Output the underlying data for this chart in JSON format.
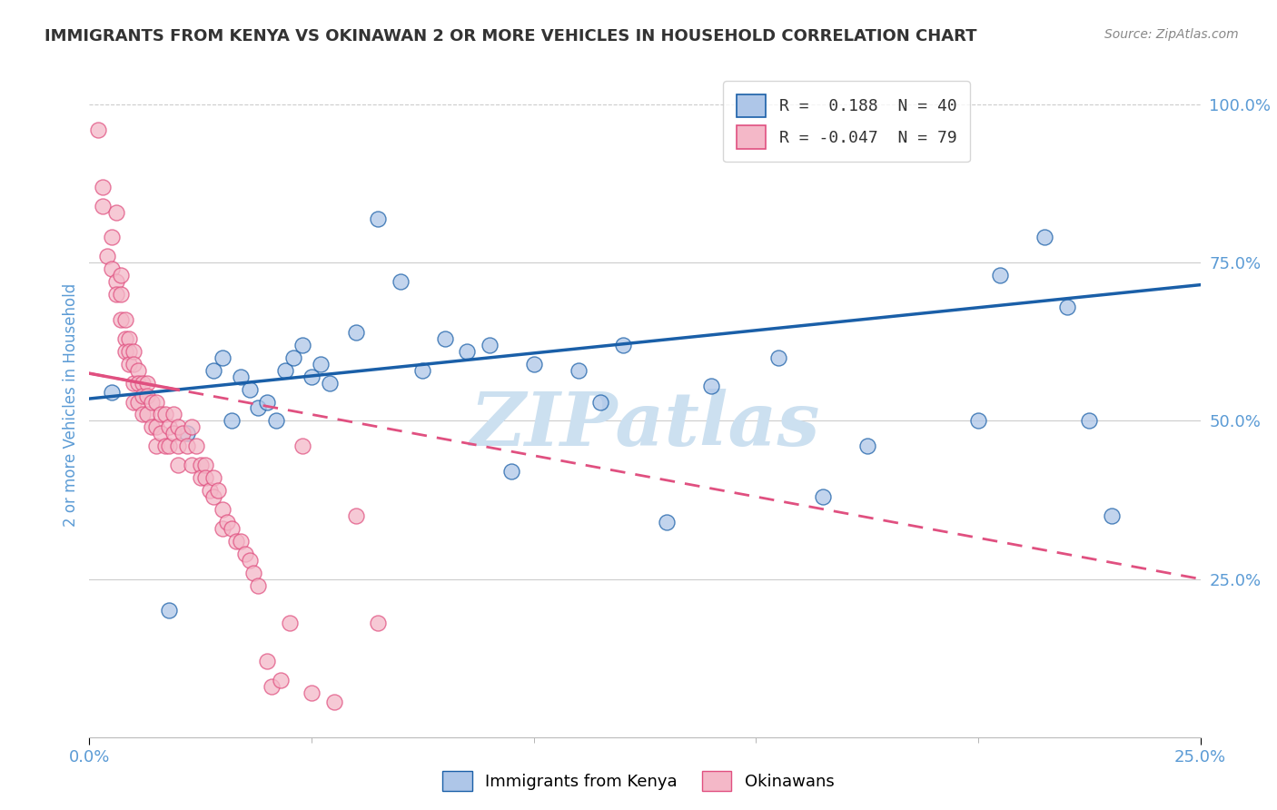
{
  "title": "IMMIGRANTS FROM KENYA VS OKINAWAN 2 OR MORE VEHICLES IN HOUSEHOLD CORRELATION CHART",
  "source": "Source: ZipAtlas.com",
  "ylabel": "2 or more Vehicles in Household",
  "xlim": [
    0.0,
    0.25
  ],
  "ylim": [
    0.0,
    1.05
  ],
  "xtick_vals": [
    0.0,
    0.25
  ],
  "xtick_labels": [
    "0.0%",
    "25.0%"
  ],
  "ytick_vals": [
    0.25,
    0.5,
    0.75,
    1.0
  ],
  "ytick_labels": [
    "25.0%",
    "50.0%",
    "75.0%",
    "100.0%"
  ],
  "legend1_label": "R =  0.188  N = 40",
  "legend2_label": "R = -0.047  N = 79",
  "legend1_facecolor": "#aec6e8",
  "legend2_facecolor": "#f4b8c8",
  "blue_line_color": "#1a5fa8",
  "pink_line_color": "#e05080",
  "axis_color": "#5b9bd5",
  "grid_color": "#cccccc",
  "watermark_color": "#cce0f0",
  "background_color": "#ffffff",
  "title_color": "#333333",
  "blue_R": 0.188,
  "pink_R": -0.047,
  "blue_intercept": 0.535,
  "blue_slope": 0.72,
  "pink_intercept": 0.575,
  "pink_slope": -1.3,
  "blue_scatter_x": [
    0.005,
    0.018,
    0.022,
    0.028,
    0.03,
    0.032,
    0.034,
    0.036,
    0.038,
    0.04,
    0.042,
    0.044,
    0.046,
    0.048,
    0.05,
    0.052,
    0.054,
    0.06,
    0.065,
    0.07,
    0.075,
    0.08,
    0.085,
    0.09,
    0.095,
    0.1,
    0.11,
    0.115,
    0.12,
    0.13,
    0.14,
    0.155,
    0.165,
    0.175,
    0.2,
    0.205,
    0.215,
    0.22,
    0.225,
    0.23
  ],
  "blue_scatter_y": [
    0.545,
    0.2,
    0.48,
    0.58,
    0.6,
    0.5,
    0.57,
    0.55,
    0.52,
    0.53,
    0.5,
    0.58,
    0.6,
    0.62,
    0.57,
    0.59,
    0.56,
    0.64,
    0.82,
    0.72,
    0.58,
    0.63,
    0.61,
    0.62,
    0.42,
    0.59,
    0.58,
    0.53,
    0.62,
    0.34,
    0.555,
    0.6,
    0.38,
    0.46,
    0.5,
    0.73,
    0.79,
    0.68,
    0.5,
    0.35
  ],
  "pink_scatter_x": [
    0.002,
    0.003,
    0.003,
    0.004,
    0.005,
    0.005,
    0.006,
    0.006,
    0.006,
    0.007,
    0.007,
    0.007,
    0.008,
    0.008,
    0.008,
    0.009,
    0.009,
    0.009,
    0.01,
    0.01,
    0.01,
    0.01,
    0.011,
    0.011,
    0.011,
    0.012,
    0.012,
    0.012,
    0.013,
    0.013,
    0.013,
    0.014,
    0.014,
    0.015,
    0.015,
    0.015,
    0.016,
    0.016,
    0.017,
    0.017,
    0.018,
    0.018,
    0.019,
    0.019,
    0.02,
    0.02,
    0.02,
    0.021,
    0.022,
    0.023,
    0.023,
    0.024,
    0.025,
    0.025,
    0.026,
    0.026,
    0.027,
    0.028,
    0.028,
    0.029,
    0.03,
    0.03,
    0.031,
    0.032,
    0.033,
    0.034,
    0.035,
    0.036,
    0.037,
    0.038,
    0.04,
    0.041,
    0.043,
    0.045,
    0.048,
    0.05,
    0.055,
    0.06,
    0.065
  ],
  "pink_scatter_y": [
    0.96,
    0.87,
    0.84,
    0.76,
    0.79,
    0.74,
    0.72,
    0.7,
    0.83,
    0.73,
    0.7,
    0.66,
    0.66,
    0.63,
    0.61,
    0.63,
    0.61,
    0.59,
    0.61,
    0.59,
    0.56,
    0.53,
    0.58,
    0.56,
    0.53,
    0.56,
    0.54,
    0.51,
    0.56,
    0.54,
    0.51,
    0.53,
    0.49,
    0.53,
    0.49,
    0.46,
    0.51,
    0.48,
    0.51,
    0.46,
    0.49,
    0.46,
    0.51,
    0.48,
    0.49,
    0.46,
    0.43,
    0.48,
    0.46,
    0.49,
    0.43,
    0.46,
    0.43,
    0.41,
    0.43,
    0.41,
    0.39,
    0.41,
    0.38,
    0.39,
    0.36,
    0.33,
    0.34,
    0.33,
    0.31,
    0.31,
    0.29,
    0.28,
    0.26,
    0.24,
    0.12,
    0.08,
    0.09,
    0.18,
    0.46,
    0.07,
    0.055,
    0.35,
    0.18
  ]
}
